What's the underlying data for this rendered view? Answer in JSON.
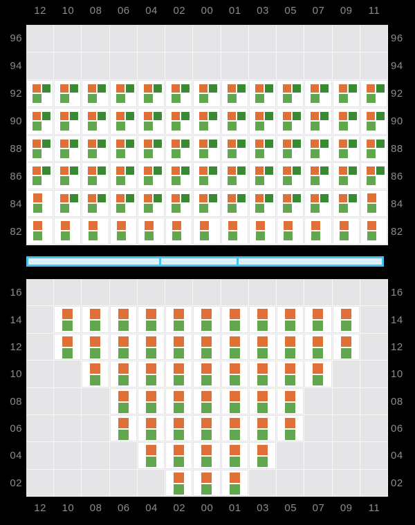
{
  "colors": {
    "page_bg": "#000000",
    "panel_bg": "#e5e5e7",
    "gridline": "#f7f7f8",
    "cell_bg": "#ffffff",
    "axis_text": "#8b8b93",
    "orange": "#df7038",
    "dark_green": "#3c8934",
    "light_green": "#62a750",
    "slider_border": "#45c2f0",
    "slider_fill": "#dcf0fa"
  },
  "slider": {
    "segment_count": 3,
    "segment_width_pct": [
      37.3,
      22.0,
      40.7
    ]
  },
  "chart_data": {
    "type": "heatmap",
    "title": "",
    "x_labels": [
      "12",
      "10",
      "08",
      "06",
      "04",
      "02",
      "00",
      "01",
      "03",
      "05",
      "07",
      "09",
      "11"
    ],
    "x_labels_shown": "top and bottom",
    "y_labels_shown": "left and right",
    "glyph_legend": {
      "0": "empty gray grid cell (no data)",
      "1": "white cell with orange square top-left, dark-green square top-right, light-green square bottom-left",
      "2": "white cell with orange square above light-green square"
    },
    "top_panel": {
      "y_labels": [
        "96",
        "94",
        "92",
        "90",
        "88",
        "86",
        "84",
        "82"
      ],
      "matrix": [
        [
          0,
          0,
          0,
          0,
          0,
          0,
          0,
          0,
          0,
          0,
          0,
          0,
          0
        ],
        [
          0,
          0,
          0,
          0,
          0,
          0,
          0,
          0,
          0,
          0,
          0,
          0,
          0
        ],
        [
          1,
          1,
          1,
          1,
          1,
          1,
          1,
          1,
          1,
          1,
          1,
          1,
          1
        ],
        [
          1,
          1,
          1,
          1,
          1,
          1,
          1,
          1,
          1,
          1,
          1,
          1,
          1
        ],
        [
          1,
          1,
          1,
          1,
          1,
          1,
          1,
          1,
          1,
          1,
          1,
          1,
          1
        ],
        [
          1,
          1,
          1,
          1,
          1,
          1,
          1,
          1,
          1,
          1,
          1,
          1,
          1
        ],
        [
          2,
          1,
          1,
          1,
          1,
          1,
          1,
          1,
          1,
          1,
          1,
          1,
          2
        ],
        [
          2,
          2,
          2,
          2,
          2,
          2,
          2,
          2,
          2,
          2,
          2,
          2,
          2
        ]
      ]
    },
    "bottom_panel": {
      "y_labels": [
        "16",
        "14",
        "12",
        "10",
        "08",
        "06",
        "04",
        "02"
      ],
      "matrix": [
        [
          0,
          0,
          0,
          0,
          0,
          0,
          0,
          0,
          0,
          0,
          0,
          0,
          0
        ],
        [
          0,
          2,
          2,
          2,
          2,
          2,
          2,
          2,
          2,
          2,
          2,
          2,
          0
        ],
        [
          0,
          2,
          2,
          2,
          2,
          2,
          2,
          2,
          2,
          2,
          2,
          2,
          0
        ],
        [
          0,
          0,
          2,
          2,
          2,
          2,
          2,
          2,
          2,
          2,
          2,
          0,
          0
        ],
        [
          0,
          0,
          0,
          2,
          2,
          2,
          2,
          2,
          2,
          2,
          0,
          0,
          0
        ],
        [
          0,
          0,
          0,
          2,
          2,
          2,
          2,
          2,
          2,
          2,
          0,
          0,
          0
        ],
        [
          0,
          0,
          0,
          0,
          2,
          2,
          2,
          2,
          2,
          0,
          0,
          0,
          0
        ],
        [
          0,
          0,
          0,
          0,
          0,
          2,
          2,
          2,
          0,
          0,
          0,
          0,
          0
        ]
      ]
    }
  }
}
